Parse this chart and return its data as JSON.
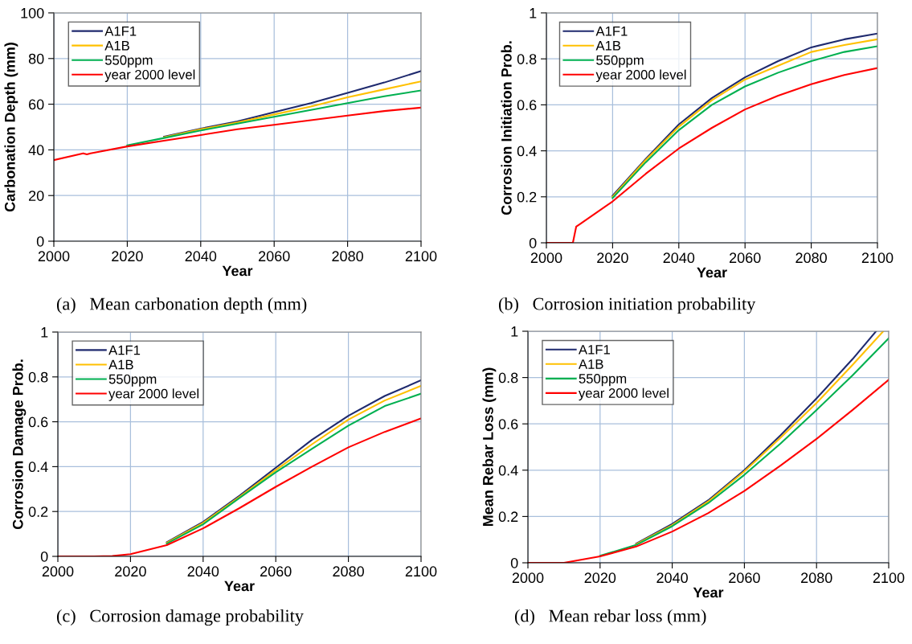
{
  "chart_data": [
    {
      "type": "line",
      "xlabel": "Year",
      "ylabel": "Carbonation Depth (mm)",
      "xlim": [
        2000,
        2100
      ],
      "xticks": [
        2000,
        2020,
        2040,
        2060,
        2080,
        2100
      ],
      "ylim": [
        0,
        100
      ],
      "yticks": [
        0,
        20,
        40,
        60,
        80,
        100
      ],
      "grid": true,
      "legend": "top left",
      "marker": "none",
      "line_style": "solid",
      "x": [
        2000,
        2008,
        2009,
        2010,
        2020,
        2030,
        2040,
        2050,
        2060,
        2070,
        2080,
        2090,
        2100
      ],
      "series": [
        {
          "name": "A1F1",
          "color": "#1f2a6e",
          "values": [
            null,
            null,
            null,
            null,
            null,
            45.8,
            49.3,
            52.5,
            56.5,
            60.5,
            65,
            69.5,
            74.5
          ]
        },
        {
          "name": "A1B",
          "color": "#ffc000",
          "values": [
            null,
            null,
            null,
            null,
            null,
            45.5,
            49,
            52,
            55.5,
            59,
            63,
            66.5,
            70
          ]
        },
        {
          "name": "550ppm",
          "color": "#00b050",
          "values": [
            null,
            null,
            null,
            null,
            42,
            45.2,
            48.5,
            51.5,
            54.5,
            57.5,
            60.5,
            63.5,
            66
          ]
        },
        {
          "name": "year 2000 level",
          "color": "#ff0000",
          "values": [
            35.5,
            38.5,
            38,
            38.5,
            41.5,
            44,
            46.5,
            49,
            51,
            53,
            55,
            57,
            58.5
          ]
        }
      ],
      "annotations": [
        "(a)   Mean carbonation depth (mm)"
      ]
    },
    {
      "type": "line",
      "xlabel": "Year",
      "ylabel": "Corrosion Initiation Prob.",
      "xlim": [
        2000,
        2100
      ],
      "xticks": [
        2000,
        2020,
        2040,
        2060,
        2080,
        2100
      ],
      "ylim": [
        0,
        1
      ],
      "yticks": [
        0,
        0.2,
        0.4,
        0.6,
        0.8,
        1
      ],
      "grid": true,
      "legend": "top left",
      "marker": "none",
      "line_style": "solid",
      "x": [
        2000,
        2008,
        2009,
        2010,
        2020,
        2030,
        2040,
        2050,
        2060,
        2070,
        2080,
        2090,
        2100
      ],
      "series": [
        {
          "name": "A1F1",
          "color": "#1f2a6e",
          "values": [
            null,
            null,
            null,
            null,
            0.205,
            0.365,
            0.515,
            0.63,
            0.72,
            0.79,
            0.85,
            0.885,
            0.91
          ]
        },
        {
          "name": "A1B",
          "color": "#ffc000",
          "values": [
            null,
            null,
            null,
            null,
            0.2,
            0.36,
            0.505,
            0.62,
            0.71,
            0.77,
            0.83,
            0.86,
            0.885
          ]
        },
        {
          "name": "550ppm",
          "color": "#00b050",
          "values": [
            null,
            null,
            null,
            null,
            0.195,
            0.35,
            0.49,
            0.6,
            0.68,
            0.74,
            0.79,
            0.83,
            0.855
          ]
        },
        {
          "name": "year 2000 level",
          "color": "#ff0000",
          "values": [
            0,
            0,
            0.07,
            0.08,
            0.18,
            0.3,
            0.41,
            0.5,
            0.58,
            0.64,
            0.69,
            0.73,
            0.76
          ]
        }
      ],
      "annotations": [
        "(b)   Corrosion initiation probability"
      ]
    },
    {
      "type": "line",
      "xlabel": "Year",
      "ylabel": "Corrosion Damage Prob.",
      "xlim": [
        2000,
        2100
      ],
      "xticks": [
        2000,
        2020,
        2040,
        2060,
        2080,
        2100
      ],
      "ylim": [
        0,
        1
      ],
      "yticks": [
        0,
        0.2,
        0.4,
        0.6,
        0.8,
        1
      ],
      "grid": true,
      "legend": "top left",
      "marker": "none",
      "line_style": "solid",
      "x": [
        2000,
        2010,
        2015,
        2020,
        2030,
        2040,
        2050,
        2060,
        2070,
        2080,
        2090,
        2100
      ],
      "series": [
        {
          "name": "A1F1",
          "color": "#1f2a6e",
          "values": [
            null,
            null,
            null,
            null,
            0.063,
            0.154,
            0.27,
            0.395,
            0.52,
            0.627,
            0.715,
            0.785
          ]
        },
        {
          "name": "A1B",
          "color": "#ffc000",
          "values": [
            null,
            null,
            null,
            null,
            0.06,
            0.149,
            0.265,
            0.385,
            0.5,
            0.61,
            0.695,
            0.76
          ]
        },
        {
          "name": "550ppm",
          "color": "#00b050",
          "values": [
            null,
            null,
            null,
            null,
            0.057,
            0.143,
            0.26,
            0.375,
            0.48,
            0.583,
            0.67,
            0.725
          ]
        },
        {
          "name": "year 2000 level",
          "color": "#ff0000",
          "values": [
            0,
            0,
            0.002,
            0.01,
            0.05,
            0.125,
            0.215,
            0.31,
            0.4,
            0.486,
            0.555,
            0.615
          ]
        }
      ],
      "annotations": [
        "(c)   Corrosion damage probability"
      ]
    },
    {
      "type": "line",
      "xlabel": "Year",
      "ylabel": "Mean Rebar Loss (mm)",
      "xlim": [
        2000,
        2100
      ],
      "xticks": [
        2000,
        2020,
        2040,
        2060,
        2080,
        2100
      ],
      "ylim": [
        0,
        1
      ],
      "yticks": [
        0,
        0.2,
        0.4,
        0.6,
        0.8,
        1
      ],
      "grid": true,
      "legend": "top left",
      "marker": "none",
      "line_style": "solid",
      "series": [
        {
          "name": "A1F1",
          "color": "#1f2a6e",
          "x": [
            2030,
            2040,
            2050,
            2060,
            2070,
            2080,
            2090,
            2096.5
          ],
          "values": [
            0.083,
            0.168,
            0.27,
            0.4,
            0.55,
            0.71,
            0.88,
            1
          ]
        },
        {
          "name": "A1B",
          "color": "#ffc000",
          "x": [
            2030,
            2040,
            2050,
            2060,
            2070,
            2080,
            2090,
            2098.5
          ],
          "values": [
            0.08,
            0.163,
            0.265,
            0.395,
            0.54,
            0.69,
            0.855,
            1
          ]
        },
        {
          "name": "550ppm",
          "color": "#00b050",
          "x": [
            2020,
            2030,
            2040,
            2050,
            2060,
            2070,
            2080,
            2090,
            2100
          ],
          "values": [
            0.03,
            0.077,
            0.158,
            0.258,
            0.38,
            0.515,
            0.66,
            0.81,
            0.97
          ]
        },
        {
          "name": "year 2000 level",
          "color": "#ff0000",
          "x": [
            2000,
            2010,
            2020,
            2030,
            2040,
            2050,
            2060,
            2070,
            2080,
            2090,
            2100
          ],
          "values": [
            0,
            0,
            0.028,
            0.07,
            0.135,
            0.215,
            0.31,
            0.42,
            0.535,
            0.66,
            0.79
          ]
        }
      ],
      "annotations": [
        "(d)   Mean rebar loss (mm)"
      ]
    }
  ]
}
